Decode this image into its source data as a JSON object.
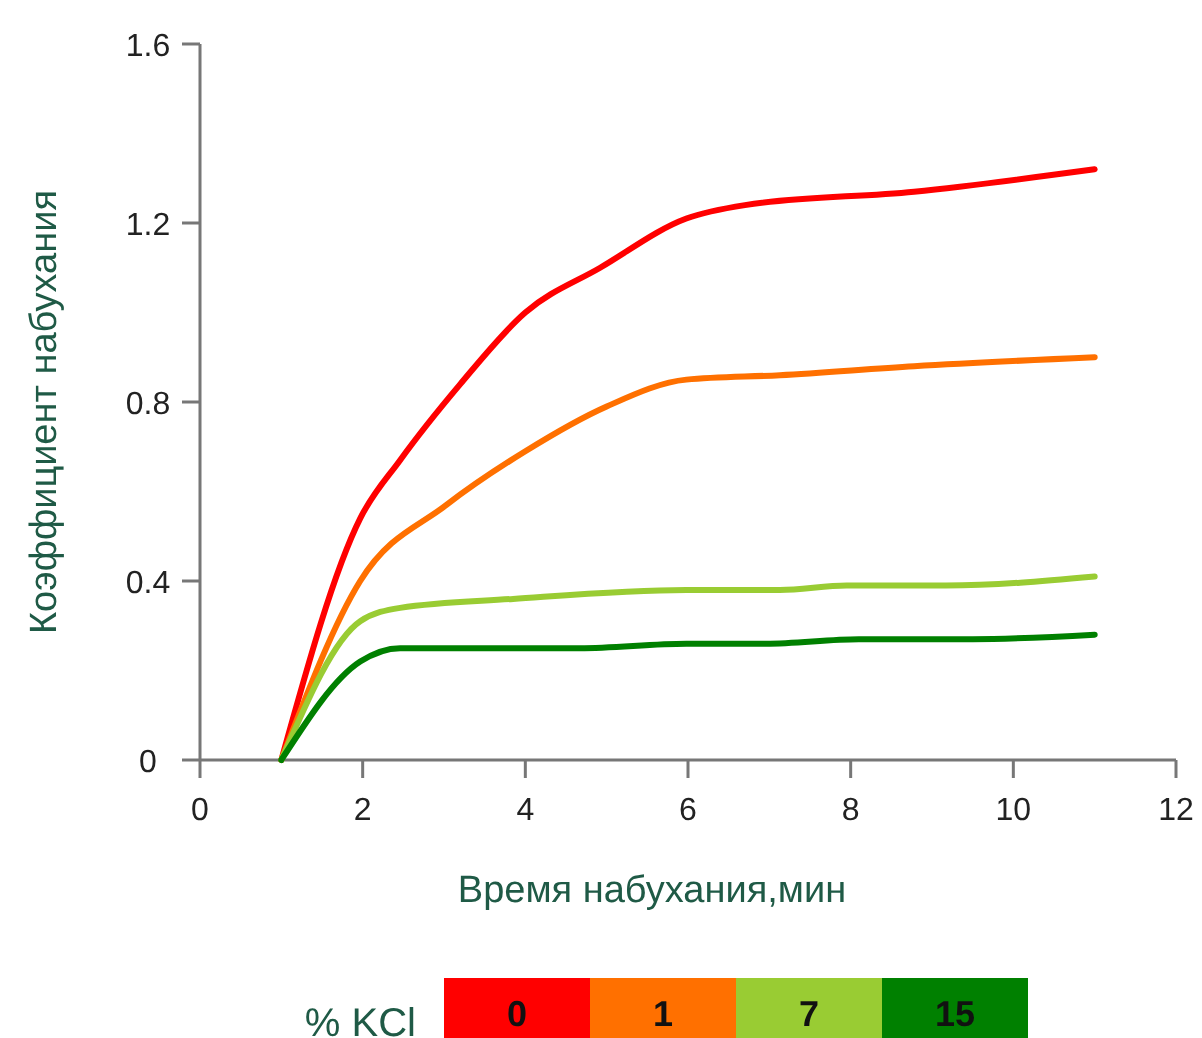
{
  "chart_data": {
    "type": "line",
    "xlabel": "Время набухания,мин",
    "ylabel": "Коэффициент набухания",
    "legend_title": "% KCl",
    "legend": "bottom",
    "grid": false,
    "line_style": "solid",
    "marker": "none",
    "xlim": [
      0,
      12
    ],
    "xticks": [
      0,
      2,
      4,
      6,
      8,
      10,
      12
    ],
    "ylim": [
      0,
      1.6
    ],
    "yticks": [
      0,
      0.4,
      0.8,
      1.2,
      1.6
    ],
    "series": [
      {
        "name": "0",
        "color": "#ff0000",
        "x": [
          1,
          1.97,
          2.46,
          3.2,
          4.0,
          4.92,
          5.98,
          6.7,
          8.78,
          11
        ],
        "values": [
          0,
          0.54,
          0.67,
          0.84,
          1.0,
          1.1,
          1.21,
          1.24,
          1.27,
          1.32
        ]
      },
      {
        "name": "1",
        "color": "#ff7000",
        "x": [
          1,
          1.97,
          3.03,
          4.0,
          5.0,
          5.98,
          7.13,
          8.78,
          11
        ],
        "values": [
          0,
          0.4,
          0.57,
          0.69,
          0.79,
          0.85,
          0.86,
          0.88,
          0.9
        ]
      },
      {
        "name": "7",
        "color": "#99cc33",
        "x": [
          1,
          1.97,
          2.46,
          3.85,
          5.98,
          7.13,
          7.95,
          9.17,
          11
        ],
        "values": [
          0,
          0.31,
          0.34,
          0.36,
          0.38,
          0.38,
          0.39,
          0.39,
          0.41
        ]
      },
      {
        "name": "15",
        "color": "#008000",
        "x": [
          1,
          1.97,
          2.46,
          4.67,
          5.98,
          6.96,
          8.1,
          9.5,
          11
        ],
        "values": [
          0,
          0.22,
          0.25,
          0.25,
          0.26,
          0.26,
          0.27,
          0.27,
          0.28
        ]
      }
    ]
  }
}
